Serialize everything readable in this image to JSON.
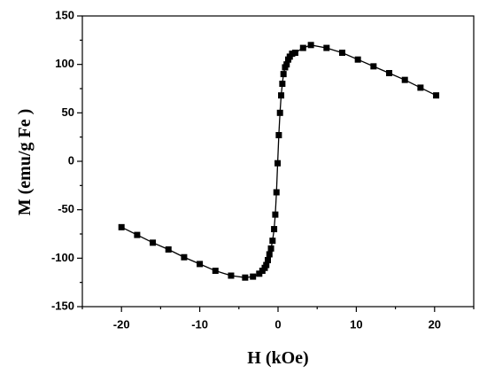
{
  "chart_data": {
    "type": "line",
    "xlabel": "H (kOe)",
    "ylabel": "M (emu/g Fe )",
    "x": [
      -20,
      -18,
      -16,
      -14,
      -12,
      -10,
      -8,
      -6,
      -4.2,
      -3.2,
      -2.4,
      -2.0,
      -1.7,
      -1.5,
      -1.3,
      -1.1,
      -0.9,
      -0.7,
      -0.5,
      -0.35,
      -0.2,
      -0.05,
      0.1,
      0.25,
      0.4,
      0.55,
      0.7,
      0.9,
      1.1,
      1.3,
      1.5,
      1.8,
      2.2,
      3.2,
      4.2,
      6.2,
      8.2,
      10.2,
      12.2,
      14.2,
      16.2,
      18.2,
      20.2
    ],
    "series": [
      {
        "color": "#000000",
        "values": [
          -68,
          -76,
          -84,
          -91,
          -99,
          -106,
          -113,
          -118,
          -120,
          -119,
          -116,
          -113,
          -110,
          -107,
          -102,
          -96,
          -90,
          -82,
          -70,
          -55,
          -32,
          -2,
          27,
          50,
          68,
          80,
          90,
          97,
          100,
          105,
          108,
          111,
          112,
          117,
          120,
          117,
          112,
          105,
          98,
          91,
          84,
          76,
          68
        ]
      }
    ],
    "xlim": [
      -25,
      25
    ],
    "xticks": [
      -20,
      -10,
      0,
      10,
      20
    ],
    "xminorticks": [
      -25,
      -15,
      -5,
      5,
      15,
      25
    ],
    "ylim": [
      -150,
      150
    ],
    "yticks": [
      -150,
      -100,
      -50,
      0,
      50,
      100,
      150
    ],
    "yminorticks": [
      -125,
      -75,
      -25,
      25,
      75,
      125
    ],
    "marker": "square"
  }
}
